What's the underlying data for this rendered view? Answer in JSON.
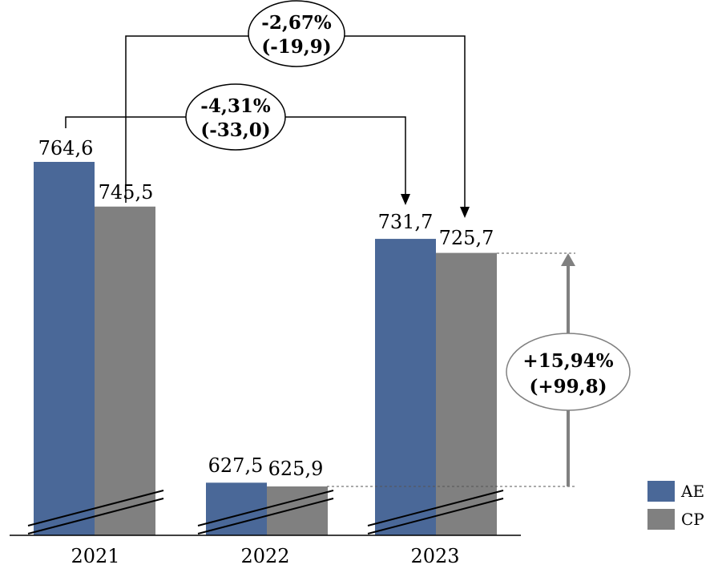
{
  "chart_data": {
    "type": "bar",
    "categories": [
      "2021",
      "2022",
      "2023"
    ],
    "series": [
      {
        "name": "AE",
        "values": [
          764.6,
          627.5,
          731.7
        ],
        "labels": [
          "764,6",
          "627,5",
          "731,7"
        ],
        "color": "#4a6898"
      },
      {
        "name": "CP",
        "values": [
          745.5,
          625.9,
          725.7
        ],
        "labels": [
          "745,5",
          "625,9",
          "725,7"
        ],
        "color": "#808080"
      }
    ],
    "axis_break": true,
    "legend_position": "bottom-right",
    "annotations": [
      {
        "line1": "-2,67%",
        "line2": "(-19,9)",
        "from": "CP 2021",
        "to": "CP 2023"
      },
      {
        "line1": "-4,31%",
        "line2": "(-33,0)",
        "from": "AE 2021",
        "to": "AE 2023"
      },
      {
        "line1": "+15,94%",
        "line2": "(+99,8)",
        "from": "CP 2022",
        "to": "CP 2023"
      }
    ]
  }
}
